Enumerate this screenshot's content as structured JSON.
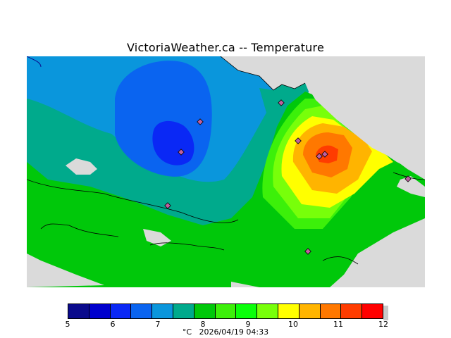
{
  "title": "VictoriaWeather.ca -- Temperature",
  "legend": {
    "values": [
      5,
      6,
      7,
      8,
      9,
      10,
      11,
      12
    ],
    "colors": [
      "#0a0a8c",
      "#0000cd",
      "#0a28f5",
      "#0a64f0",
      "#0a96dc",
      "#00aa8c",
      "#00c80a",
      "#3cf00a",
      "#0aff0a",
      "#78ff0a",
      "#ffff00",
      "#ffb400",
      "#ff7800",
      "#ff3c00",
      "#ff0000"
    ]
  },
  "footer": {
    "unit": "°C",
    "timestamp": "2026/04/19 04:33"
  },
  "colors": {
    "background_land_unknown": "#dadada",
    "station_marker": "#c060a0"
  }
}
